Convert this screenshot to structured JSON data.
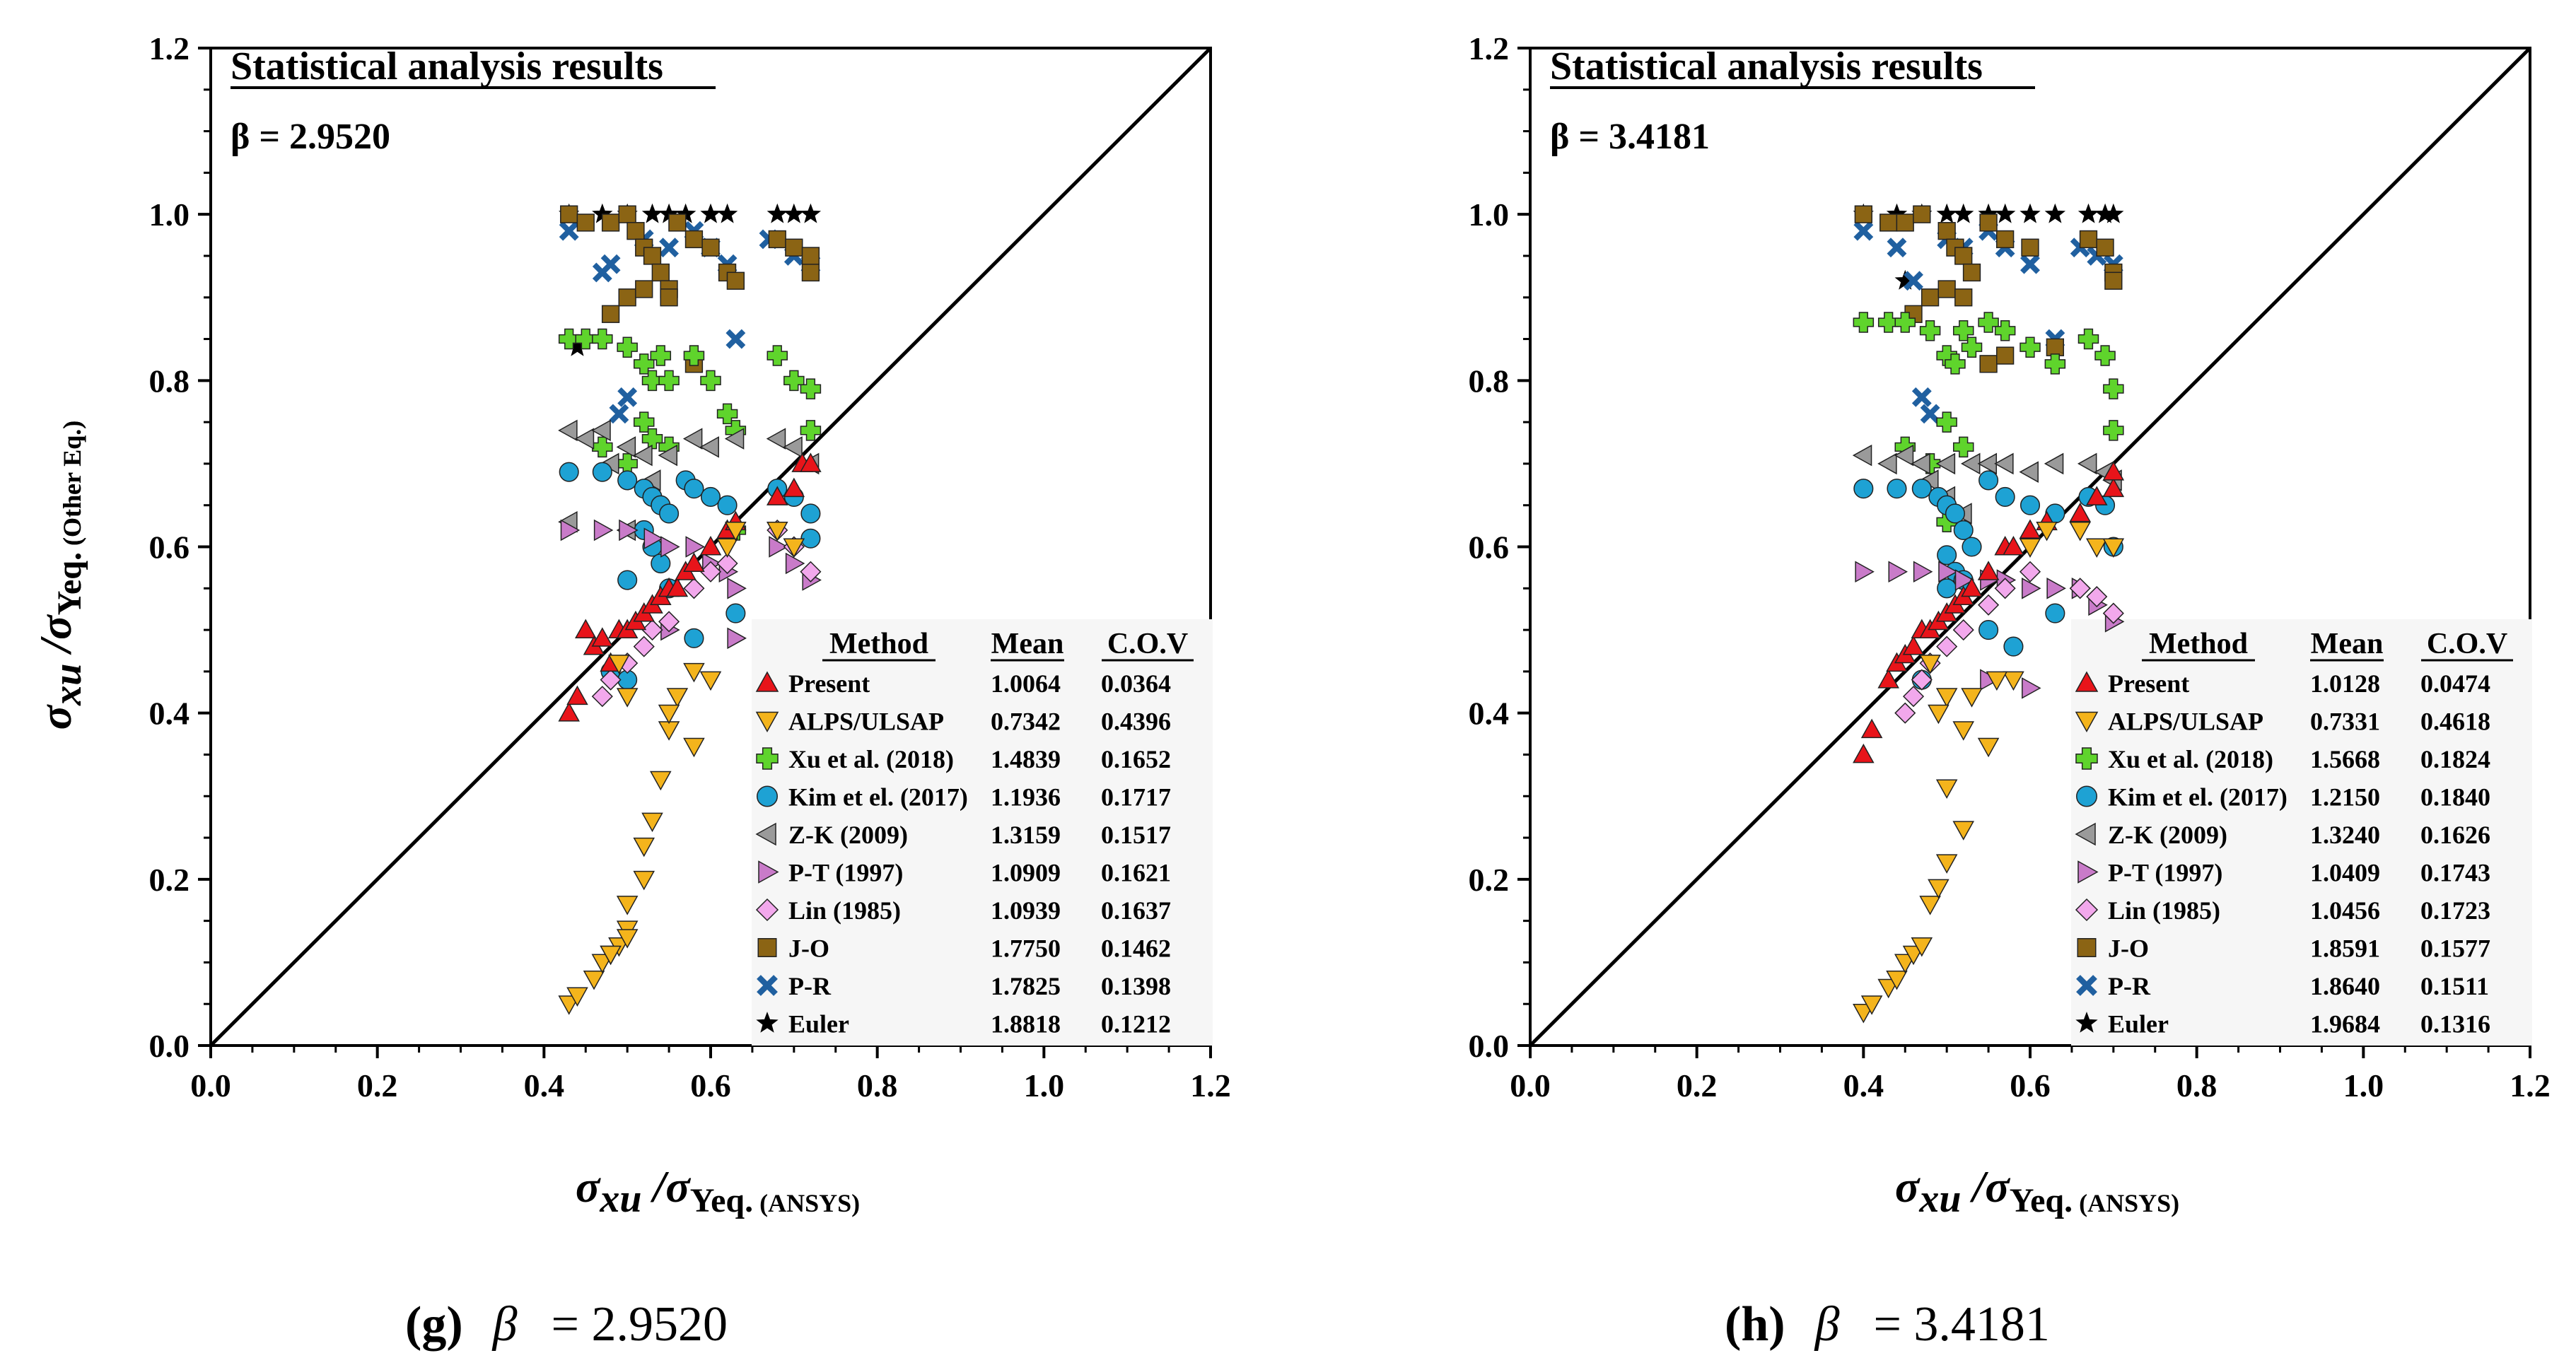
{
  "chart_data": [
    {
      "type": "scatter",
      "panel_tag": "(g)",
      "caption_symbol": "β",
      "caption_value": "= 2.9520",
      "title": "Statistical analysis results",
      "beta_text": "β = 2.9520",
      "xlabel_main": "σxu /σYeq.",
      "xlabel_sub": "(ANSYS)",
      "ylabel_main": "σxu /σYeq.",
      "ylabel_sub": "(Other Eq.)",
      "xlim": [
        0,
        1.2
      ],
      "ylim": [
        0,
        1.2
      ],
      "x_ticks": [
        "0.0",
        "0.2",
        "0.4",
        "0.6",
        "0.8",
        "1.0",
        "1.2"
      ],
      "y_ticks": [
        "0.0",
        "0.2",
        "0.4",
        "0.6",
        "0.8",
        "1.0",
        "1.2"
      ],
      "reference_line": [
        [
          0,
          0
        ],
        [
          1.2,
          1.2
        ]
      ],
      "legend_headers": [
        "Method",
        "Mean",
        "C.O.V"
      ],
      "legend": [
        {
          "method": "Present",
          "mean": "1.0064",
          "cov": "0.0364"
        },
        {
          "method": "ALPS/ULSAP",
          "mean": "0.7342",
          "cov": "0.4396"
        },
        {
          "method": "Xu et al. (2018)",
          "mean": "1.4839",
          "cov": "0.1652"
        },
        {
          "method": "Kim et el. (2017)",
          "mean": "1.1936",
          "cov": "0.1717"
        },
        {
          "method": "Z-K (2009)",
          "mean": "1.3159",
          "cov": "0.1517"
        },
        {
          "method": "P-T (1997)",
          "mean": "1.0909",
          "cov": "0.1621"
        },
        {
          "method": "Lin (1985)",
          "mean": "1.0939",
          "cov": "0.1637"
        },
        {
          "method": "J-O",
          "mean": "1.7750",
          "cov": "0.1462"
        },
        {
          "method": "P-R",
          "mean": "1.7825",
          "cov": "0.1398"
        },
        {
          "method": "Euler",
          "mean": "1.8818",
          "cov": "0.1212"
        }
      ],
      "series": [
        {
          "name": "Euler",
          "x": [
            0.43,
            0.47,
            0.5,
            0.53,
            0.55,
            0.57,
            0.6,
            0.62,
            0.68,
            0.7,
            0.72,
            0.44
          ],
          "y": [
            1.0,
            1.0,
            1.0,
            1.0,
            1.0,
            1.0,
            1.0,
            1.0,
            1.0,
            1.0,
            1.0,
            0.84
          ]
        },
        {
          "name": "P-R",
          "x": [
            0.43,
            0.47,
            0.48,
            0.49,
            0.5,
            0.52,
            0.55,
            0.58,
            0.6,
            0.62,
            0.63,
            0.67,
            0.7,
            0.72
          ],
          "y": [
            0.98,
            0.93,
            0.94,
            0.76,
            0.78,
            0.97,
            0.96,
            0.98,
            0.96,
            0.94,
            0.85,
            0.97,
            0.95,
            0.94
          ]
        },
        {
          "name": "J-O",
          "x": [
            0.43,
            0.45,
            0.48,
            0.5,
            0.51,
            0.52,
            0.53,
            0.54,
            0.55,
            0.56,
            0.58,
            0.6,
            0.62,
            0.63,
            0.68,
            0.7,
            0.72,
            0.48,
            0.5,
            0.52,
            0.55,
            0.58,
            0.72
          ],
          "y": [
            1.0,
            0.99,
            0.99,
            1.0,
            0.98,
            0.96,
            0.95,
            0.93,
            0.91,
            0.99,
            0.97,
            0.96,
            0.93,
            0.92,
            0.97,
            0.96,
            0.93,
            0.88,
            0.9,
            0.91,
            0.9,
            0.82,
            0.95
          ]
        },
        {
          "name": "Xu et al. (2018)",
          "x": [
            0.43,
            0.45,
            0.47,
            0.5,
            0.52,
            0.53,
            0.54,
            0.55,
            0.58,
            0.6,
            0.62,
            0.63,
            0.68,
            0.7,
            0.72,
            0.47,
            0.5,
            0.52,
            0.55,
            0.53,
            0.63,
            0.72
          ],
          "y": [
            0.85,
            0.85,
            0.85,
            0.84,
            0.82,
            0.8,
            0.83,
            0.8,
            0.83,
            0.8,
            0.76,
            0.74,
            0.83,
            0.8,
            0.79,
            0.72,
            0.7,
            0.75,
            0.72,
            0.73,
            0.62,
            0.74
          ]
        },
        {
          "name": "Z-K (2009)",
          "x": [
            0.43,
            0.45,
            0.47,
            0.48,
            0.5,
            0.52,
            0.55,
            0.58,
            0.6,
            0.63,
            0.68,
            0.7,
            0.72,
            0.43,
            0.5,
            0.53
          ],
          "y": [
            0.74,
            0.73,
            0.74,
            0.7,
            0.72,
            0.71,
            0.71,
            0.73,
            0.72,
            0.73,
            0.73,
            0.72,
            0.7,
            0.63,
            0.62,
            0.68
          ]
        },
        {
          "name": "Kim et el. (2017)",
          "x": [
            0.43,
            0.47,
            0.5,
            0.52,
            0.53,
            0.54,
            0.55,
            0.52,
            0.53,
            0.54,
            0.5,
            0.55,
            0.57,
            0.58,
            0.6,
            0.62,
            0.63,
            0.68,
            0.7,
            0.72,
            0.48,
            0.5,
            0.58,
            0.72
          ],
          "y": [
            0.69,
            0.69,
            0.68,
            0.67,
            0.66,
            0.65,
            0.64,
            0.62,
            0.6,
            0.58,
            0.56,
            0.55,
            0.68,
            0.67,
            0.66,
            0.65,
            0.52,
            0.67,
            0.66,
            0.64,
            0.45,
            0.44,
            0.49,
            0.61
          ]
        },
        {
          "name": "P-T (1997)",
          "x": [
            0.43,
            0.47,
            0.5,
            0.53,
            0.55,
            0.58,
            0.6,
            0.62,
            0.63,
            0.68,
            0.7,
            0.72,
            0.55,
            0.63
          ],
          "y": [
            0.62,
            0.62,
            0.62,
            0.61,
            0.6,
            0.6,
            0.58,
            0.57,
            0.55,
            0.6,
            0.58,
            0.56,
            0.5,
            0.49
          ]
        },
        {
          "name": "Lin (1985)",
          "x": [
            0.47,
            0.48,
            0.5,
            0.52,
            0.53,
            0.55,
            0.58,
            0.6,
            0.62,
            0.68,
            0.7,
            0.72
          ],
          "y": [
            0.42,
            0.44,
            0.46,
            0.48,
            0.5,
            0.51,
            0.55,
            0.57,
            0.58,
            0.62,
            0.6,
            0.57
          ]
        },
        {
          "name": "Present",
          "x": [
            0.43,
            0.44,
            0.45,
            0.46,
            0.47,
            0.48,
            0.49,
            0.5,
            0.51,
            0.52,
            0.53,
            0.54,
            0.55,
            0.56,
            0.57,
            0.58,
            0.6,
            0.62,
            0.63,
            0.68,
            0.7,
            0.71,
            0.72
          ],
          "y": [
            0.4,
            0.42,
            0.5,
            0.48,
            0.49,
            0.46,
            0.5,
            0.5,
            0.51,
            0.52,
            0.53,
            0.54,
            0.55,
            0.55,
            0.57,
            0.58,
            0.6,
            0.62,
            0.63,
            0.66,
            0.67,
            0.7,
            0.7
          ]
        },
        {
          "name": "ALPS/ULSAP",
          "x": [
            0.43,
            0.44,
            0.46,
            0.47,
            0.48,
            0.49,
            0.5,
            0.52,
            0.53,
            0.54,
            0.55,
            0.56,
            0.58,
            0.6,
            0.62,
            0.63,
            0.68,
            0.7,
            0.48,
            0.5,
            0.52,
            0.5,
            0.49,
            0.55,
            0.58,
            0.5
          ],
          "y": [
            0.05,
            0.06,
            0.08,
            0.1,
            0.11,
            0.12,
            0.14,
            0.2,
            0.27,
            0.32,
            0.38,
            0.42,
            0.45,
            0.44,
            0.6,
            0.62,
            0.62,
            0.6,
            0.11,
            0.17,
            0.24,
            0.42,
            0.46,
            0.4,
            0.36,
            0.13
          ]
        }
      ]
    },
    {
      "type": "scatter",
      "panel_tag": "(h)",
      "caption_symbol": "β",
      "caption_value": "= 3.4181",
      "title": "Statistical analysis results",
      "beta_text": "β = 3.4181",
      "xlabel_main": "σxu /σYeq.",
      "xlabel_sub": "(ANSYS)",
      "ylabel_main": "σxu /σYeq.",
      "ylabel_sub": "(Other Eq.)",
      "xlim": [
        0,
        1.2
      ],
      "ylim": [
        0,
        1.2
      ],
      "x_ticks": [
        "0.0",
        "0.2",
        "0.4",
        "0.6",
        "0.8",
        "1.0",
        "1.2"
      ],
      "y_ticks": [
        "0.0",
        "0.2",
        "0.4",
        "0.6",
        "0.8",
        "1.0",
        "1.2"
      ],
      "reference_line": [
        [
          0,
          0
        ],
        [
          1.2,
          1.2
        ]
      ],
      "legend_headers": [
        "Method",
        "Mean",
        "C.O.V"
      ],
      "legend": [
        {
          "method": "Present",
          "mean": "1.0128",
          "cov": "0.0474"
        },
        {
          "method": "ALPS/ULSAP",
          "mean": "0.7331",
          "cov": "0.4618"
        },
        {
          "method": "Xu et al. (2018)",
          "mean": "1.5668",
          "cov": "0.1824"
        },
        {
          "method": "Kim et el. (2017)",
          "mean": "1.2150",
          "cov": "0.1840"
        },
        {
          "method": "Z-K (2009)",
          "mean": "1.3240",
          "cov": "0.1626"
        },
        {
          "method": "P-T (1997)",
          "mean": "1.0409",
          "cov": "0.1743"
        },
        {
          "method": "Lin (1985)",
          "mean": "1.0456",
          "cov": "0.1723"
        },
        {
          "method": "J-O",
          "mean": "1.8591",
          "cov": "0.1577"
        },
        {
          "method": "P-R",
          "mean": "1.8640",
          "cov": "0.1511"
        },
        {
          "method": "Euler",
          "mean": "1.9684",
          "cov": "0.1316"
        }
      ],
      "series": [
        {
          "name": "Euler",
          "x": [
            0.4,
            0.44,
            0.47,
            0.5,
            0.52,
            0.55,
            0.57,
            0.6,
            0.63,
            0.67,
            0.69,
            0.7,
            0.45
          ],
          "y": [
            1.0,
            1.0,
            1.0,
            1.0,
            1.0,
            1.0,
            1.0,
            1.0,
            1.0,
            1.0,
            1.0,
            1.0,
            0.92
          ]
        },
        {
          "name": "P-R",
          "x": [
            0.4,
            0.44,
            0.46,
            0.47,
            0.48,
            0.5,
            0.52,
            0.55,
            0.57,
            0.6,
            0.63,
            0.66,
            0.68,
            0.7
          ],
          "y": [
            0.98,
            0.96,
            0.92,
            0.78,
            0.76,
            0.97,
            0.96,
            0.98,
            0.96,
            0.94,
            0.85,
            0.96,
            0.95,
            0.94
          ]
        },
        {
          "name": "J-O",
          "x": [
            0.4,
            0.43,
            0.45,
            0.47,
            0.5,
            0.51,
            0.52,
            0.53,
            0.55,
            0.57,
            0.6,
            0.63,
            0.67,
            0.69,
            0.7,
            0.46,
            0.48,
            0.5,
            0.52,
            0.55,
            0.57,
            0.7
          ],
          "y": [
            1.0,
            0.99,
            0.99,
            1.0,
            0.98,
            0.96,
            0.95,
            0.93,
            0.99,
            0.97,
            0.96,
            0.84,
            0.97,
            0.96,
            0.93,
            0.88,
            0.9,
            0.91,
            0.9,
            0.82,
            0.83,
            0.92
          ]
        },
        {
          "name": "Xu et al. (2018)",
          "x": [
            0.4,
            0.43,
            0.45,
            0.48,
            0.5,
            0.51,
            0.52,
            0.53,
            0.55,
            0.57,
            0.6,
            0.63,
            0.67,
            0.69,
            0.7,
            0.45,
            0.48,
            0.5,
            0.52,
            0.5,
            0.7
          ],
          "y": [
            0.87,
            0.87,
            0.87,
            0.86,
            0.83,
            0.82,
            0.86,
            0.84,
            0.87,
            0.86,
            0.84,
            0.82,
            0.85,
            0.83,
            0.79,
            0.72,
            0.7,
            0.75,
            0.72,
            0.63,
            0.74
          ]
        },
        {
          "name": "Z-K (2009)",
          "x": [
            0.4,
            0.43,
            0.45,
            0.47,
            0.48,
            0.5,
            0.53,
            0.55,
            0.57,
            0.6,
            0.63,
            0.67,
            0.69,
            0.7,
            0.5,
            0.52
          ],
          "y": [
            0.71,
            0.7,
            0.71,
            0.7,
            0.68,
            0.7,
            0.7,
            0.7,
            0.7,
            0.69,
            0.7,
            0.7,
            0.69,
            0.68,
            0.66,
            0.64
          ]
        },
        {
          "name": "Kim et el. (2017)",
          "x": [
            0.4,
            0.44,
            0.47,
            0.49,
            0.5,
            0.51,
            0.52,
            0.53,
            0.5,
            0.51,
            0.52,
            0.5,
            0.55,
            0.57,
            0.6,
            0.63,
            0.67,
            0.69,
            0.7,
            0.47,
            0.55,
            0.58,
            0.63
          ],
          "y": [
            0.67,
            0.67,
            0.67,
            0.66,
            0.65,
            0.64,
            0.62,
            0.6,
            0.59,
            0.57,
            0.56,
            0.55,
            0.68,
            0.66,
            0.65,
            0.64,
            0.66,
            0.65,
            0.6,
            0.44,
            0.5,
            0.48,
            0.52
          ]
        },
        {
          "name": "P-T (1997)",
          "x": [
            0.4,
            0.44,
            0.47,
            0.5,
            0.52,
            0.55,
            0.57,
            0.6,
            0.63,
            0.66,
            0.68,
            0.7,
            0.55,
            0.6
          ],
          "y": [
            0.57,
            0.57,
            0.57,
            0.57,
            0.56,
            0.56,
            0.56,
            0.55,
            0.55,
            0.55,
            0.53,
            0.51,
            0.44,
            0.43
          ]
        },
        {
          "name": "Lin (1985)",
          "x": [
            0.45,
            0.46,
            0.47,
            0.48,
            0.5,
            0.52,
            0.55,
            0.57,
            0.6,
            0.66,
            0.68,
            0.7
          ],
          "y": [
            0.4,
            0.42,
            0.44,
            0.46,
            0.48,
            0.5,
            0.53,
            0.55,
            0.57,
            0.55,
            0.54,
            0.52
          ]
        },
        {
          "name": "Present",
          "x": [
            0.4,
            0.41,
            0.43,
            0.44,
            0.45,
            0.46,
            0.47,
            0.48,
            0.49,
            0.5,
            0.51,
            0.52,
            0.53,
            0.55,
            0.57,
            0.58,
            0.6,
            0.62,
            0.66,
            0.68,
            0.7,
            0.7
          ],
          "y": [
            0.35,
            0.38,
            0.44,
            0.46,
            0.47,
            0.48,
            0.5,
            0.5,
            0.51,
            0.52,
            0.53,
            0.54,
            0.55,
            0.57,
            0.6,
            0.6,
            0.62,
            0.63,
            0.64,
            0.66,
            0.67,
            0.69
          ]
        },
        {
          "name": "ALPS/ULSAP",
          "x": [
            0.4,
            0.41,
            0.43,
            0.44,
            0.45,
            0.46,
            0.47,
            0.48,
            0.49,
            0.5,
            0.5,
            0.52,
            0.53,
            0.55,
            0.58,
            0.6,
            0.62,
            0.66,
            0.68,
            0.7,
            0.5,
            0.49,
            0.48,
            0.56,
            0.52
          ],
          "y": [
            0.04,
            0.05,
            0.07,
            0.08,
            0.1,
            0.11,
            0.12,
            0.17,
            0.19,
            0.22,
            0.31,
            0.26,
            0.42,
            0.36,
            0.44,
            0.6,
            0.62,
            0.62,
            0.6,
            0.6,
            0.42,
            0.4,
            0.46,
            0.44,
            0.38
          ]
        }
      ]
    }
  ]
}
